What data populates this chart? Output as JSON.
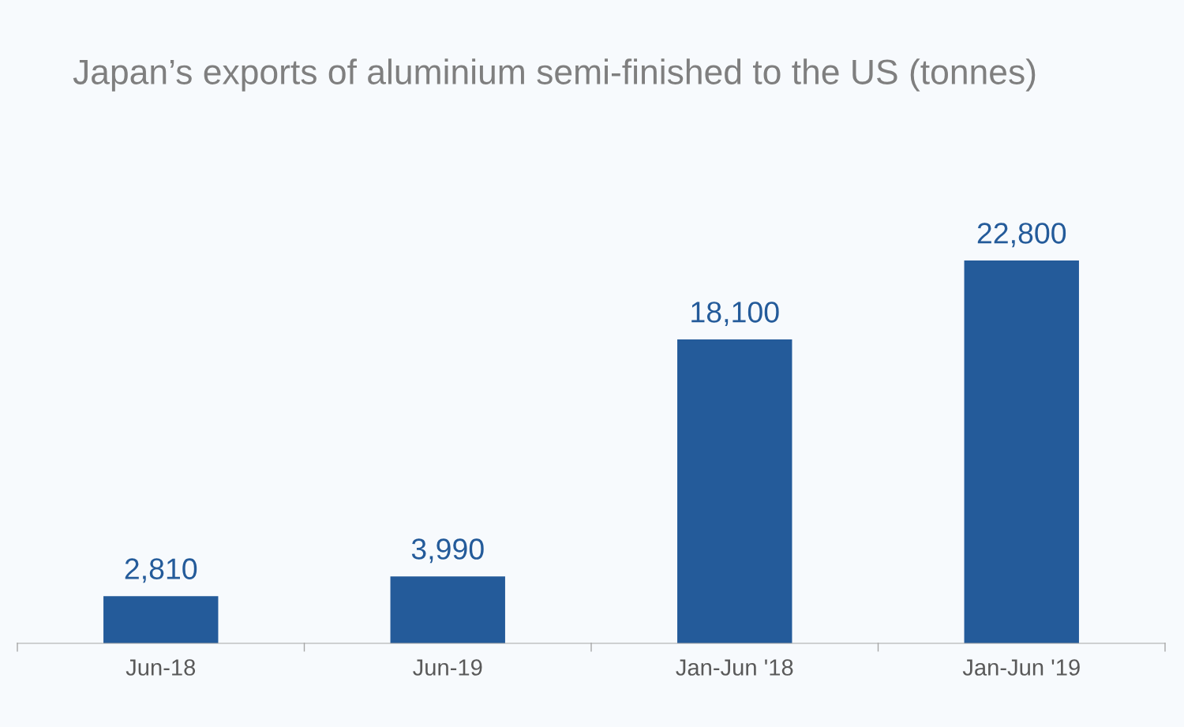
{
  "chart_data": {
    "type": "bar",
    "title": "Japan’s exports of aluminium semi-finished to the US (tonnes)",
    "categories": [
      "Jun-18",
      "Jun-19",
      "Jan-Jun '18",
      "Jan-Jun '19"
    ],
    "values": [
      2810,
      3990,
      18100,
      22800
    ],
    "value_labels": [
      "2,810",
      "3,990",
      "18,100",
      "22,800"
    ],
    "color": "#245b9a",
    "tick_labels": "x",
    "grid": false,
    "legend": false
  }
}
